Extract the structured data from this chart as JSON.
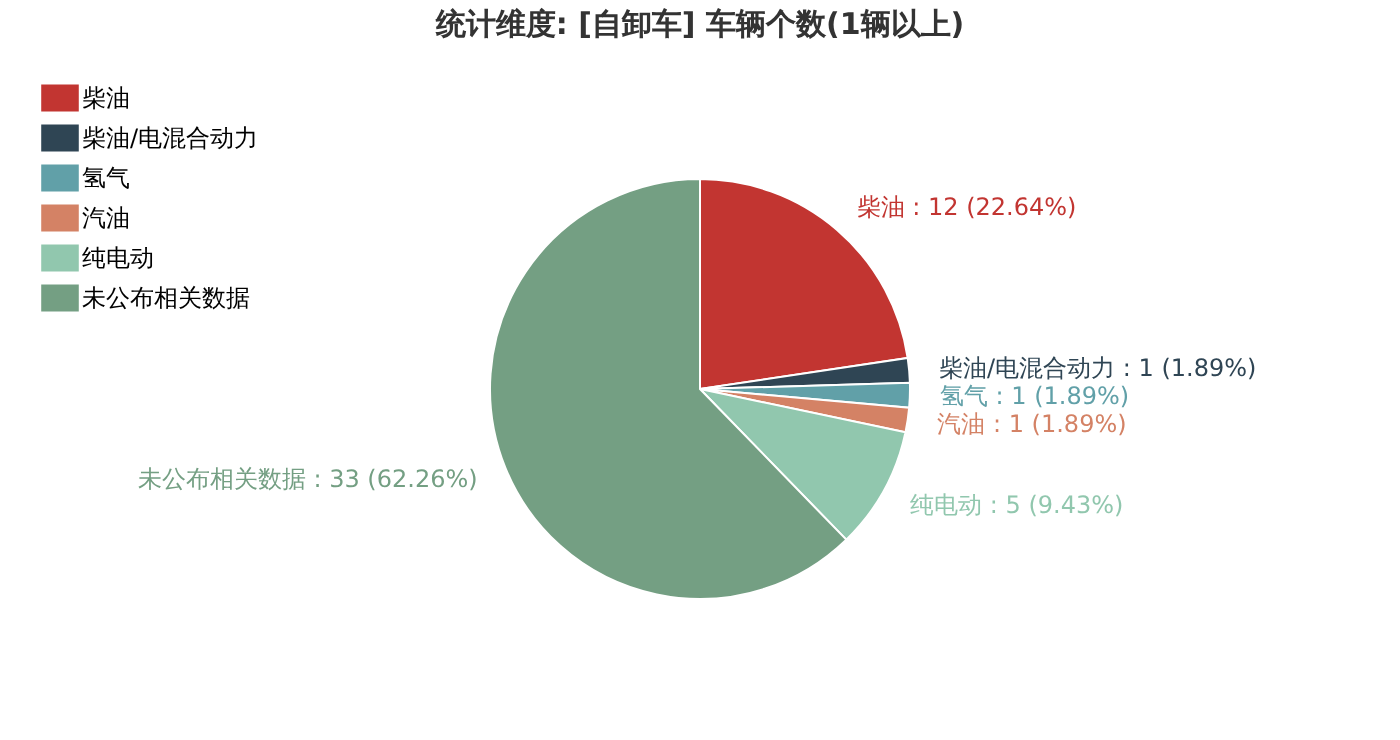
{
  "chart_data": {
    "type": "pie",
    "title": "统计维度: [自卸车] 车辆个数(1辆以上)",
    "categories": [
      "柴油",
      "柴油/电混合动力",
      "氢气",
      "汽油",
      "纯电动",
      "未公布相关数据"
    ],
    "values": [
      12,
      1,
      1,
      1,
      5,
      33
    ],
    "colors": [
      "#c23531",
      "#2f4554",
      "#61a0a8",
      "#d48265",
      "#91c7ae",
      "#749f83"
    ],
    "value_labels": [
      "柴油 : 12 (22.64%)",
      "柴油/电混合动力 : 1 (1.89%)",
      "氢气 : 1 (1.89%)",
      "汽油 : 1 (1.89%)",
      "纯电动 : 5 (9.43%)",
      "未公布相关数据 : 33 (62.26%)"
    ],
    "legend": "top left"
  }
}
